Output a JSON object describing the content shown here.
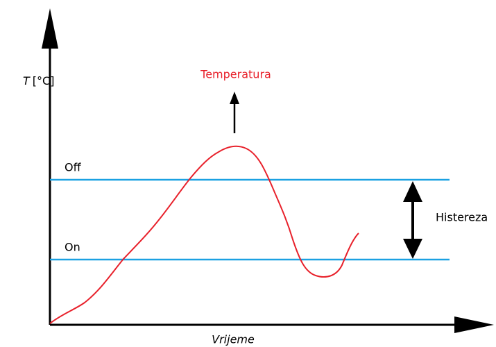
{
  "axis_y": {
    "symbol": "T",
    "unit": "[°C]"
  },
  "axis_x": {
    "label": "Vrijeme"
  },
  "curve": {
    "label": "Temperatura"
  },
  "thresholds": {
    "off": "Off",
    "on": "On"
  },
  "hysteresis": {
    "label": "Histereza"
  }
}
